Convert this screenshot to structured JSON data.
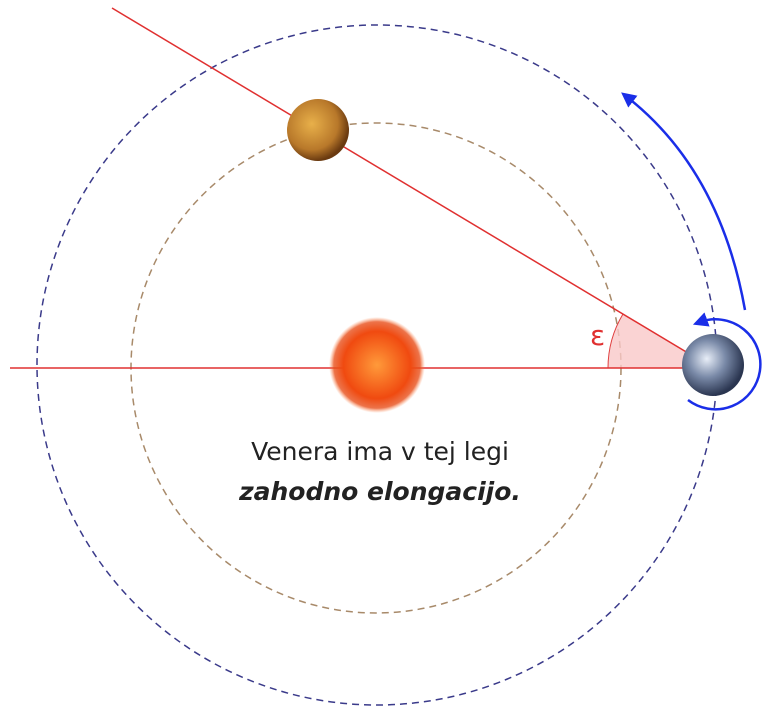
{
  "angle_label": "ε",
  "caption": {
    "line1": "Venera ima v tej legi",
    "line2": "zahodno elongacijo."
  }
}
